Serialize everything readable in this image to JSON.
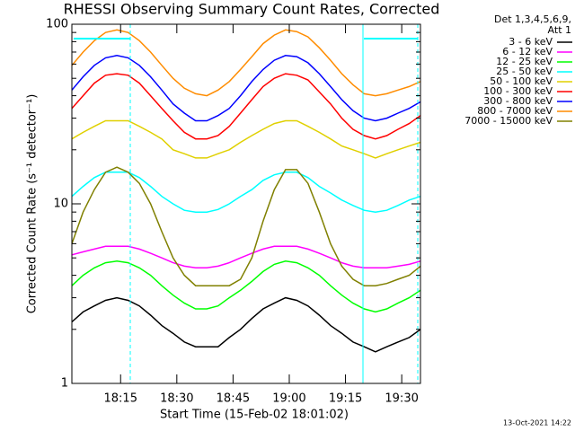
{
  "chart_data": {
    "type": "line",
    "title": "RHESSI Observing Summary Count Rates, Corrected",
    "xlabel": "Start Time (15-Feb-02 18:01:02)",
    "ylabel": "Corrected Count Rate (s⁻¹ detector⁻¹)",
    "legend_title": [
      "Det 1,3,4,5,6,9,",
      "Att 1"
    ],
    "footer": "13-Oct-2021 14:22",
    "log_y": true,
    "legend_position": "right",
    "x": [
      "18:02",
      "18:05",
      "18:08",
      "18:11",
      "18:14",
      "18:17",
      "18:20",
      "18:23",
      "18:26",
      "18:29",
      "18:32",
      "18:35",
      "18:38",
      "18:41",
      "18:44",
      "18:47",
      "18:50",
      "18:53",
      "18:56",
      "18:59",
      "19:02",
      "19:05",
      "19:08",
      "19:11",
      "19:14",
      "19:17",
      "19:20",
      "19:23",
      "19:26",
      "19:29",
      "19:32",
      "19:35"
    ],
    "xlim": [
      "18:02",
      "19:35"
    ],
    "xticks": [
      "18:15",
      "18:30",
      "18:45",
      "19:00",
      "19:15",
      "19:30"
    ],
    "ylim": [
      1,
      100
    ],
    "yticks": [
      1,
      10,
      100
    ],
    "yticks_minor": [
      2,
      3,
      4,
      5,
      6,
      7,
      8,
      9,
      20,
      30,
      40,
      50,
      60,
      70,
      80,
      90
    ],
    "series": [
      {
        "name": "3 - 6 keV",
        "color": "#000000",
        "values": [
          2.2,
          2.5,
          2.7,
          2.9,
          3,
          2.9,
          2.7,
          2.4,
          2.1,
          1.9,
          1.7,
          1.6,
          1.6,
          1.6,
          1.8,
          2,
          2.3,
          2.6,
          2.8,
          3,
          2.9,
          2.7,
          2.4,
          2.1,
          1.9,
          1.7,
          1.6,
          1.5,
          1.6,
          1.7,
          1.8,
          2
        ]
      },
      {
        "name": "6 - 12 keV",
        "color": "#ff00ff",
        "values": [
          5.2,
          5.4,
          5.6,
          5.8,
          5.8,
          5.8,
          5.6,
          5.3,
          5,
          4.7,
          4.5,
          4.4,
          4.4,
          4.5,
          4.7,
          5,
          5.3,
          5.6,
          5.8,
          5.8,
          5.8,
          5.6,
          5.3,
          5,
          4.7,
          4.5,
          4.4,
          4.4,
          4.4,
          4.5,
          4.6,
          4.8
        ]
      },
      {
        "name": "12 - 25 keV",
        "color": "#00ff00",
        "values": [
          3.5,
          4,
          4.4,
          4.7,
          4.8,
          4.7,
          4.4,
          4,
          3.5,
          3.1,
          2.8,
          2.6,
          2.6,
          2.7,
          3,
          3.3,
          3.7,
          4.2,
          4.6,
          4.8,
          4.7,
          4.4,
          4,
          3.5,
          3.1,
          2.8,
          2.6,
          2.5,
          2.6,
          2.8,
          3,
          3.3
        ]
      },
      {
        "name": "25 - 50 keV",
        "color": "#00ffff",
        "values": [
          11,
          12.5,
          14,
          15,
          15,
          15,
          14,
          12.5,
          11,
          10,
          9.2,
          9,
          9,
          9.3,
          10,
          11,
          12,
          13.5,
          14.5,
          15,
          15,
          14,
          12.5,
          11.5,
          10.5,
          9.8,
          9.2,
          9,
          9.2,
          9.8,
          10.5,
          11
        ]
      },
      {
        "name": "50 - 100 keV",
        "color": "#e0d000",
        "values": [
          23,
          25,
          27,
          29,
          29,
          29,
          27,
          25,
          23,
          20,
          19,
          18,
          18,
          19,
          20,
          22,
          24,
          26,
          28,
          29,
          29,
          27,
          25,
          23,
          21,
          20,
          19,
          18,
          19,
          20,
          21,
          22
        ]
      },
      {
        "name": "100 - 300 keV",
        "color": "#ff0000",
        "values": [
          34,
          40,
          47,
          52,
          53,
          52,
          47,
          40,
          34,
          29,
          25,
          23,
          23,
          24,
          27,
          32,
          38,
          45,
          50,
          53,
          52,
          49,
          42,
          36,
          30,
          26,
          24,
          23,
          24,
          26,
          28,
          31
        ]
      },
      {
        "name": "300 - 800 keV",
        "color": "#0000ff",
        "values": [
          43,
          51,
          59,
          65,
          67,
          65,
          59,
          51,
          43,
          36,
          32,
          29,
          29,
          31,
          34,
          40,
          48,
          56,
          63,
          67,
          66,
          61,
          53,
          45,
          38,
          33,
          30,
          29,
          30,
          32,
          34,
          37
        ]
      },
      {
        "name": "800 - 7000 keV",
        "color": "#ff8c00",
        "values": [
          59,
          70,
          81,
          90,
          93,
          90,
          81,
          70,
          59,
          50,
          44,
          41,
          40,
          43,
          48,
          56,
          66,
          78,
          87,
          93,
          91,
          85,
          74,
          63,
          53,
          46,
          41,
          40,
          41,
          43,
          45,
          48
        ]
      },
      {
        "name": "7000 - 15000 keV",
        "color": "#808000",
        "values": [
          6,
          9,
          12,
          15,
          16,
          15,
          13,
          10,
          7,
          5,
          4,
          3.5,
          3.5,
          3.5,
          3.5,
          3.8,
          5,
          8,
          12,
          15.5,
          15.5,
          13,
          9,
          6,
          4.5,
          3.8,
          3.5,
          3.5,
          3.6,
          3.8,
          4,
          4.5
        ]
      }
    ]
  }
}
